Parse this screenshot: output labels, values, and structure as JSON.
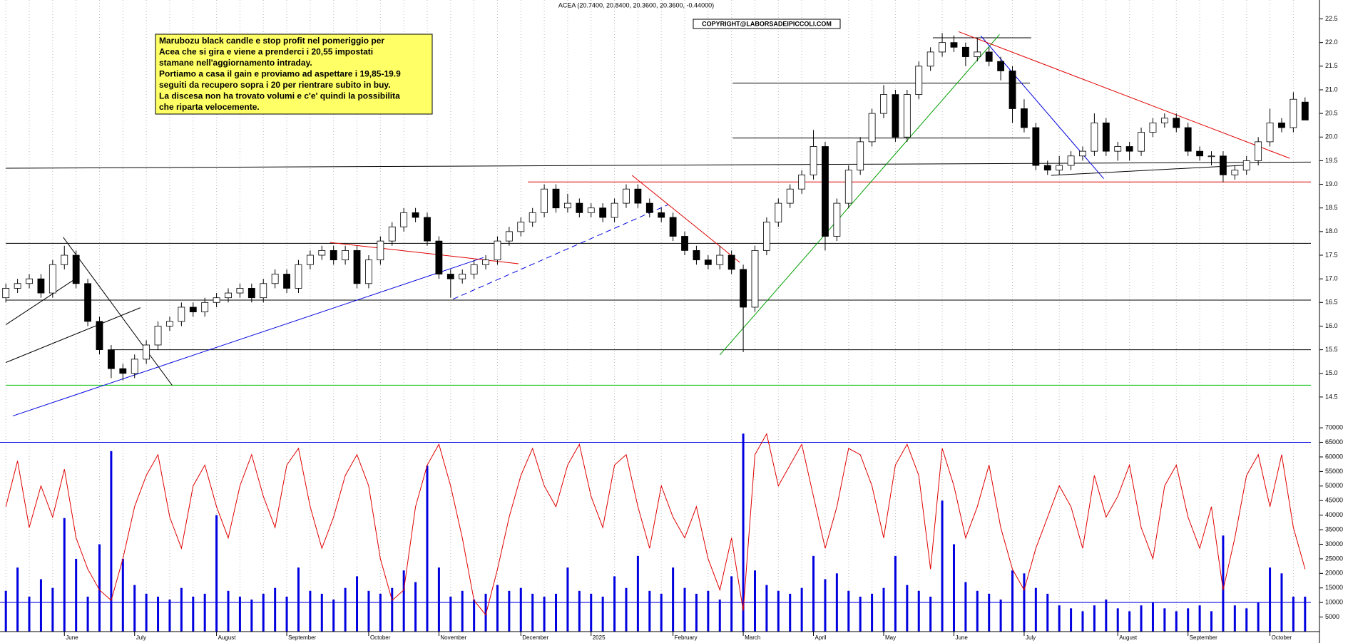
{
  "chart_data": {
    "type": "candlestick",
    "title": "ACEA (20.7400, 20.8400, 20.3600, 20.3600, -0.44000)",
    "watermark": "COPYRIGHT@LABORSADEIPICCOLI.COM",
    "annotation": [
      "Marubozu black candle e stop profit nel pomeriggio per",
      "Acea che si gira e viene a prenderci i 20,55 impostati",
      "stamane nell'aggiornamento intraday.",
      "Portiamo a casa il gain e proviamo ad aspettare i 19,85-19.9",
      "seguiti da recupero sopra i 20 per rientrare subito in buy.",
      "La discesa non ha trovato volumi e c'e' quindi la possibilita",
      "che riparta velocemente."
    ],
    "categories": [
      null,
      null,
      null,
      null,
      null,
      "June",
      null,
      null,
      null,
      null,
      null,
      "July",
      null,
      null,
      null,
      null,
      null,
      null,
      "August",
      null,
      null,
      null,
      null,
      null,
      "September",
      null,
      null,
      null,
      null,
      null,
      null,
      "October",
      null,
      null,
      null,
      null,
      null,
      "November",
      null,
      null,
      null,
      null,
      null,
      null,
      "December",
      null,
      null,
      null,
      null,
      null,
      "2025",
      null,
      null,
      null,
      null,
      null,
      null,
      "February",
      null,
      null,
      null,
      null,
      null,
      "March",
      null,
      null,
      null,
      null,
      null,
      "April",
      null,
      null,
      null,
      null,
      null,
      "May",
      null,
      null,
      null,
      null,
      null,
      "June",
      null,
      null,
      null,
      null,
      null,
      "July",
      null,
      null,
      null,
      null,
      null,
      null,
      null,
      "August",
      null,
      null,
      null,
      null,
      null,
      "September",
      null,
      null,
      null,
      null,
      null,
      null,
      "October",
      null,
      null,
      null
    ],
    "ohlc": [
      [
        16.6,
        16.9,
        16.5,
        16.8
      ],
      [
        16.8,
        17.0,
        16.7,
        16.9
      ],
      [
        16.9,
        17.1,
        16.8,
        17.0
      ],
      [
        17.0,
        17.1,
        16.6,
        16.7
      ],
      [
        16.7,
        17.4,
        16.6,
        17.3
      ],
      [
        17.3,
        17.7,
        17.2,
        17.5
      ],
      [
        17.5,
        17.6,
        16.8,
        16.9
      ],
      [
        16.9,
        17.0,
        16.0,
        16.1
      ],
      [
        16.1,
        16.2,
        15.4,
        15.5
      ],
      [
        15.5,
        15.6,
        14.9,
        15.1
      ],
      [
        15.1,
        15.2,
        14.85,
        15.0
      ],
      [
        15.0,
        15.4,
        14.9,
        15.3
      ],
      [
        15.3,
        15.7,
        15.2,
        15.6
      ],
      [
        15.6,
        16.1,
        15.5,
        16.0
      ],
      [
        16.0,
        16.2,
        15.9,
        16.1
      ],
      [
        16.1,
        16.5,
        16.0,
        16.4
      ],
      [
        16.4,
        16.5,
        16.2,
        16.3
      ],
      [
        16.3,
        16.6,
        16.2,
        16.5
      ],
      [
        16.5,
        16.7,
        16.4,
        16.6
      ],
      [
        16.6,
        16.8,
        16.5,
        16.7
      ],
      [
        16.7,
        16.9,
        16.6,
        16.8
      ],
      [
        16.8,
        16.9,
        16.5,
        16.6
      ],
      [
        16.6,
        17.0,
        16.5,
        16.9
      ],
      [
        16.9,
        17.2,
        16.8,
        17.1
      ],
      [
        17.1,
        17.2,
        16.7,
        16.8
      ],
      [
        16.8,
        17.4,
        16.7,
        17.3
      ],
      [
        17.3,
        17.6,
        17.2,
        17.5
      ],
      [
        17.5,
        17.7,
        17.4,
        17.6
      ],
      [
        17.6,
        17.7,
        17.3,
        17.4
      ],
      [
        17.4,
        17.7,
        17.3,
        17.6
      ],
      [
        17.6,
        17.7,
        16.8,
        16.9
      ],
      [
        16.9,
        17.5,
        16.8,
        17.4
      ],
      [
        17.4,
        17.9,
        17.3,
        17.8
      ],
      [
        17.8,
        18.2,
        17.7,
        18.1
      ],
      [
        18.1,
        18.5,
        18.0,
        18.4
      ],
      [
        18.4,
        18.5,
        18.2,
        18.3
      ],
      [
        18.3,
        18.4,
        17.7,
        17.8
      ],
      [
        17.8,
        17.9,
        17.0,
        17.1
      ],
      [
        17.1,
        17.2,
        16.6,
        17.0
      ],
      [
        17.0,
        17.2,
        16.9,
        17.1
      ],
      [
        17.1,
        17.4,
        17.0,
        17.3
      ],
      [
        17.3,
        17.5,
        17.2,
        17.4
      ],
      [
        17.4,
        17.9,
        17.3,
        17.8
      ],
      [
        17.8,
        18.1,
        17.7,
        18.0
      ],
      [
        18.0,
        18.3,
        17.9,
        18.2
      ],
      [
        18.2,
        18.5,
        18.1,
        18.4
      ],
      [
        18.4,
        19.0,
        18.3,
        18.9
      ],
      [
        18.9,
        19.0,
        18.4,
        18.5
      ],
      [
        18.5,
        18.8,
        18.4,
        18.6
      ],
      [
        18.6,
        18.7,
        18.3,
        18.4
      ],
      [
        18.4,
        18.6,
        18.3,
        18.5
      ],
      [
        18.5,
        18.6,
        18.2,
        18.3
      ],
      [
        18.3,
        18.7,
        18.2,
        18.6
      ],
      [
        18.6,
        19.0,
        18.5,
        18.9
      ],
      [
        18.9,
        19.0,
        18.5,
        18.6
      ],
      [
        18.6,
        18.7,
        18.3,
        18.4
      ],
      [
        18.4,
        18.5,
        18.2,
        18.3
      ],
      [
        18.3,
        18.4,
        17.8,
        17.9
      ],
      [
        17.9,
        18.0,
        17.5,
        17.6
      ],
      [
        17.6,
        17.7,
        17.3,
        17.4
      ],
      [
        17.4,
        17.5,
        17.2,
        17.3
      ],
      [
        17.3,
        17.7,
        17.2,
        17.5
      ],
      [
        17.5,
        17.6,
        17.1,
        17.2
      ],
      [
        17.2,
        17.3,
        15.45,
        16.4
      ],
      [
        16.4,
        17.7,
        16.3,
        17.6
      ],
      [
        17.6,
        18.3,
        17.5,
        18.2
      ],
      [
        18.2,
        18.7,
        18.1,
        18.6
      ],
      [
        18.6,
        19.0,
        18.5,
        18.9
      ],
      [
        18.9,
        19.3,
        18.8,
        19.2
      ],
      [
        19.2,
        20.15,
        19.1,
        19.8
      ],
      [
        19.8,
        19.9,
        17.6,
        17.9
      ],
      [
        17.9,
        18.7,
        17.8,
        18.6
      ],
      [
        18.6,
        19.4,
        18.5,
        19.3
      ],
      [
        19.3,
        20.0,
        19.2,
        19.9
      ],
      [
        19.9,
        20.6,
        19.8,
        20.5
      ],
      [
        20.5,
        21.1,
        20.4,
        20.9
      ],
      [
        20.9,
        21.0,
        19.9,
        20.0
      ],
      [
        20.0,
        21.0,
        19.9,
        20.9
      ],
      [
        20.9,
        21.6,
        20.8,
        21.5
      ],
      [
        21.5,
        21.9,
        21.4,
        21.8
      ],
      [
        21.8,
        22.2,
        21.7,
        22.0
      ],
      [
        22.0,
        22.15,
        21.8,
        21.9
      ],
      [
        21.9,
        22.0,
        21.5,
        21.7
      ],
      [
        21.7,
        22.1,
        21.6,
        21.8
      ],
      [
        21.8,
        21.9,
        21.5,
        21.6
      ],
      [
        21.6,
        21.7,
        21.2,
        21.4
      ],
      [
        21.4,
        21.5,
        20.3,
        20.6
      ],
      [
        20.6,
        20.8,
        20.1,
        20.2
      ],
      [
        20.2,
        20.3,
        19.3,
        19.4
      ],
      [
        19.4,
        19.5,
        19.2,
        19.3
      ],
      [
        19.3,
        19.6,
        19.2,
        19.4
      ],
      [
        19.4,
        19.7,
        19.3,
        19.6
      ],
      [
        19.6,
        19.8,
        19.5,
        19.7
      ],
      [
        19.7,
        20.5,
        19.6,
        20.3
      ],
      [
        20.3,
        20.4,
        19.6,
        19.7
      ],
      [
        19.7,
        19.9,
        19.5,
        19.8
      ],
      [
        19.8,
        19.9,
        19.5,
        19.7
      ],
      [
        19.7,
        20.2,
        19.6,
        20.1
      ],
      [
        20.1,
        20.4,
        20.0,
        20.3
      ],
      [
        20.3,
        20.5,
        20.2,
        20.4
      ],
      [
        20.4,
        20.5,
        20.1,
        20.2
      ],
      [
        20.2,
        20.3,
        19.6,
        19.7
      ],
      [
        19.7,
        19.8,
        19.5,
        19.6
      ],
      [
        19.6,
        19.7,
        19.4,
        19.6
      ],
      [
        19.6,
        19.7,
        19.05,
        19.2
      ],
      [
        19.2,
        19.4,
        19.1,
        19.3
      ],
      [
        19.3,
        19.6,
        19.2,
        19.5
      ],
      [
        19.5,
        20.0,
        19.4,
        19.9
      ],
      [
        19.9,
        20.6,
        19.8,
        20.3
      ],
      [
        20.3,
        20.4,
        20.1,
        20.2
      ],
      [
        20.2,
        20.95,
        20.1,
        20.8
      ],
      [
        20.74,
        20.84,
        20.36,
        20.36
      ]
    ],
    "up_color": "#ffffff",
    "down_color": "#000000",
    "ylim": [
      13.85,
      22.9
    ],
    "yticks": [
      14.5,
      {
        "value": 15,
        "label": "15.0"
      },
      15.5,
      {
        "value": 16,
        "label": "16.0"
      },
      16.5,
      {
        "value": 17,
        "label": "17.0"
      },
      17.5,
      {
        "value": 18,
        "label": "18.0"
      },
      18.5,
      {
        "value": 19,
        "label": "19.0"
      },
      19.5,
      {
        "value": 20,
        "label": "20.0"
      },
      20.5,
      {
        "value": 21,
        "label": "21.0"
      },
      21.5,
      {
        "value": 22,
        "label": "22.0"
      },
      22.5
    ],
    "grid": true,
    "lines": [
      {
        "x": [
          0,
          112
        ],
        "y": [
          19.34,
          19.47
        ],
        "color": "#000000"
      },
      {
        "x": [
          0,
          112
        ],
        "y": [
          14.75,
          14.75
        ],
        "color": "#00c000"
      },
      {
        "x": [
          9,
          112
        ],
        "y": [
          15.5,
          15.5
        ],
        "color": "#000000"
      },
      {
        "x": [
          0,
          112
        ],
        "y": [
          16.55,
          16.55
        ],
        "color": "#000000"
      },
      {
        "x": [
          0,
          112
        ],
        "y": [
          17.75,
          17.75
        ],
        "color": "#000000"
      },
      {
        "x": [
          44.6,
          112
        ],
        "y": [
          19.05,
          19.05
        ],
        "color": "#e00000"
      },
      {
        "x": [
          62.1,
          87.5
        ],
        "y": [
          19.98,
          19.98
        ],
        "color": "#000000"
      },
      {
        "x": [
          62.1,
          87.5
        ],
        "y": [
          21.14,
          21.14
        ],
        "color": "#000000"
      },
      {
        "x": [
          79.2,
          87.6
        ],
        "y": [
          22.1,
          22.1
        ],
        "color": "#000000"
      },
      {
        "x": [
          0.6,
          40.8
        ],
        "y": [
          14.1,
          17.45
        ],
        "color": "#0000e0"
      },
      {
        "x": [
          38.2,
          56.6
        ],
        "y": [
          16.57,
          18.57
        ],
        "color": "#0000e0",
        "dashed": true
      },
      {
        "x": [
          4.9,
          14.2
        ],
        "y": [
          17.88,
          14.75
        ],
        "color": "#000000"
      },
      {
        "x": [
          0,
          11.5
        ],
        "y": [
          15.23,
          16.39
        ],
        "color": "#000000"
      },
      {
        "x": [
          0,
          6.25
        ],
        "y": [
          16.03,
          17.05
        ],
        "color": "#000000"
      },
      {
        "x": [
          27.7,
          43.8
        ],
        "y": [
          17.77,
          17.32
        ],
        "color": "#e00000"
      },
      {
        "x": [
          53.5,
          62.7
        ],
        "y": [
          19.19,
          17.35
        ],
        "color": "#e00000"
      },
      {
        "x": [
          61,
          84.9
        ],
        "y": [
          15.39,
          22.17
        ],
        "color": "#00a000"
      },
      {
        "x": [
          83.3,
          93.8
        ],
        "y": [
          22.14,
          19.12
        ],
        "color": "#0000e0"
      },
      {
        "x": [
          81.4,
          109.7
        ],
        "y": [
          22.23,
          19.55
        ],
        "color": "#e00000"
      },
      {
        "x": [
          89.3,
          106.3
        ],
        "y": [
          19.19,
          19.41
        ],
        "color": "#000000"
      }
    ],
    "volume": {
      "color": "#0000e0",
      "values": [
        14000,
        22000,
        12000,
        18000,
        15000,
        39000,
        25000,
        12000,
        30000,
        62000,
        25000,
        16000,
        13000,
        12000,
        11000,
        15000,
        12000,
        13000,
        40000,
        14000,
        12000,
        11000,
        13000,
        15000,
        12000,
        22000,
        14000,
        13000,
        11000,
        15000,
        19000,
        14000,
        13000,
        15000,
        21000,
        17000,
        57000,
        22000,
        12000,
        14000,
        11000,
        13000,
        16000,
        14000,
        15000,
        13000,
        12000,
        13000,
        22000,
        14000,
        13000,
        12000,
        19000,
        15000,
        26000,
        14000,
        13000,
        22000,
        15000,
        13000,
        14000,
        11000,
        19000,
        68000,
        21000,
        16000,
        14000,
        13000,
        15000,
        26000,
        18000,
        20000,
        14000,
        12000,
        13000,
        15000,
        26000,
        16000,
        14000,
        12000,
        45000,
        30000,
        17000,
        14000,
        13000,
        11000,
        21000,
        20000,
        15000,
        13000,
        9000,
        8000,
        7000,
        9000,
        11000,
        8000,
        7000,
        9000,
        10000,
        8000,
        7000,
        8000,
        9000,
        7000,
        33000,
        9000,
        8000,
        10000,
        22000,
        20000,
        12000,
        12000
      ],
      "ylim": [
        0,
        71500
      ],
      "yticks": [
        5000,
        10000,
        15000,
        20000,
        25000,
        30000,
        35000,
        40000,
        45000,
        50000,
        55000,
        60000,
        65000,
        70000
      ],
      "levels": [
        65000,
        10000
      ]
    },
    "oscillator": {
      "color": "#e00000",
      "values": [
        60,
        82,
        50,
        70,
        55,
        78,
        45,
        30,
        20,
        15,
        35,
        60,
        75,
        85,
        55,
        40,
        70,
        80,
        60,
        45,
        70,
        85,
        65,
        50,
        80,
        88,
        60,
        40,
        55,
        75,
        85,
        70,
        35,
        15,
        20,
        60,
        80,
        90,
        70,
        45,
        15,
        8,
        30,
        55,
        75,
        88,
        70,
        60,
        80,
        90,
        65,
        50,
        80,
        85,
        60,
        40,
        70,
        55,
        45,
        60,
        35,
        20,
        45,
        10,
        85,
        95,
        70,
        80,
        90,
        65,
        40,
        60,
        88,
        85,
        70,
        45,
        80,
        90,
        75,
        30,
        88,
        70,
        45,
        60,
        80,
        50,
        30,
        20,
        40,
        55,
        70,
        60,
        40,
        75,
        55,
        65,
        80,
        50,
        35,
        70,
        80,
        55,
        40,
        60,
        20,
        45,
        75,
        85,
        60,
        85,
        50,
        30
      ],
      "ylim": [
        0,
        100
      ]
    }
  }
}
